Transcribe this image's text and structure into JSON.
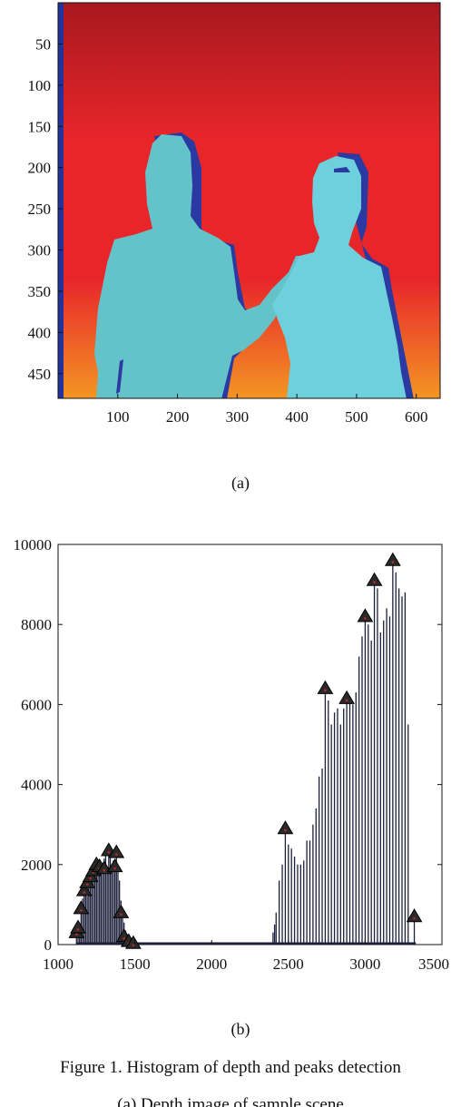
{
  "panel_a": {
    "label": "(a)",
    "image_width": 640,
    "image_height": 480,
    "yticks": [
      50,
      100,
      150,
      200,
      250,
      300,
      350,
      400,
      450
    ],
    "xticks": [
      100,
      200,
      300,
      400,
      500,
      600
    ],
    "colors": {
      "far_top": "#a8181f",
      "mid": "#e8262a",
      "near_bottom": "#f39524",
      "person_fill": "#63c3c9",
      "person_fill_light": "#6ed0dc",
      "shadow": "#2a3aa2",
      "left_border": "#24339c"
    }
  },
  "chart_data": {
    "type": "bar",
    "label": "(b)",
    "xlim": [
      1000,
      3500
    ],
    "ylim": [
      0,
      10000
    ],
    "xticks": [
      1000,
      1500,
      2000,
      2500,
      3000,
      3500
    ],
    "yticks": [
      0,
      2000,
      4000,
      6000,
      8000,
      10000
    ],
    "bars": [
      [
        1120,
        300
      ],
      [
        1130,
        420
      ],
      [
        1140,
        250
      ],
      [
        1150,
        900
      ],
      [
        1160,
        1150
      ],
      [
        1170,
        1350
      ],
      [
        1180,
        1500
      ],
      [
        1190,
        1200
      ],
      [
        1200,
        1650
      ],
      [
        1210,
        1450
      ],
      [
        1220,
        1800
      ],
      [
        1230,
        1600
      ],
      [
        1240,
        1950
      ],
      [
        1250,
        1850
      ],
      [
        1260,
        2050
      ],
      [
        1270,
        1750
      ],
      [
        1280,
        2000
      ],
      [
        1290,
        1900
      ],
      [
        1300,
        2150
      ],
      [
        1310,
        2250
      ],
      [
        1320,
        1800
      ],
      [
        1330,
        2350
      ],
      [
        1340,
        2200
      ],
      [
        1350,
        2000
      ],
      [
        1360,
        2100
      ],
      [
        1370,
        1850
      ],
      [
        1380,
        2300
      ],
      [
        1390,
        1950
      ],
      [
        1400,
        1600
      ],
      [
        1410,
        1100
      ],
      [
        1420,
        800
      ],
      [
        1430,
        550
      ],
      [
        1440,
        350
      ],
      [
        1450,
        250
      ],
      [
        1460,
        180
      ],
      [
        1470,
        150
      ],
      [
        1480,
        110
      ],
      [
        1490,
        80
      ],
      [
        1500,
        60
      ],
      [
        1510,
        40
      ],
      [
        2400,
        300
      ],
      [
        2410,
        500
      ],
      [
        2420,
        800
      ],
      [
        2440,
        1600
      ],
      [
        2460,
        2000
      ],
      [
        2480,
        2900
      ],
      [
        2500,
        2500
      ],
      [
        2520,
        2400
      ],
      [
        2540,
        2200
      ],
      [
        2560,
        2000
      ],
      [
        2580,
        2000
      ],
      [
        2600,
        2100
      ],
      [
        2620,
        2600
      ],
      [
        2640,
        2600
      ],
      [
        2660,
        3000
      ],
      [
        2680,
        3400
      ],
      [
        2700,
        4200
      ],
      [
        2720,
        4400
      ],
      [
        2740,
        6400
      ],
      [
        2760,
        6100
      ],
      [
        2780,
        5500
      ],
      [
        2800,
        5800
      ],
      [
        2820,
        5900
      ],
      [
        2840,
        5500
      ],
      [
        2860,
        5900
      ],
      [
        2880,
        6100
      ],
      [
        2900,
        6100
      ],
      [
        2920,
        6000
      ],
      [
        2940,
        6300
      ],
      [
        2960,
        7200
      ],
      [
        2980,
        7700
      ],
      [
        3000,
        8200
      ],
      [
        3020,
        8000
      ],
      [
        3040,
        7600
      ],
      [
        3060,
        9100
      ],
      [
        3080,
        8900
      ],
      [
        3100,
        7800
      ],
      [
        3120,
        8100
      ],
      [
        3140,
        8400
      ],
      [
        3160,
        8200
      ],
      [
        3180,
        9600
      ],
      [
        3200,
        9300
      ],
      [
        3220,
        8900
      ],
      [
        3240,
        8700
      ],
      [
        3260,
        8800
      ],
      [
        3280,
        5500
      ],
      [
        3300,
        0
      ],
      [
        3320,
        700
      ]
    ],
    "peaks": [
      [
        1120,
        300
      ],
      [
        1130,
        420
      ],
      [
        1150,
        900
      ],
      [
        1170,
        1350
      ],
      [
        1190,
        1550
      ],
      [
        1210,
        1700
      ],
      [
        1230,
        1850
      ],
      [
        1250,
        2000
      ],
      [
        1270,
        1950
      ],
      [
        1300,
        1900
      ],
      [
        1330,
        2350
      ],
      [
        1380,
        2300
      ],
      [
        1370,
        1950
      ],
      [
        1410,
        800
      ],
      [
        1430,
        200
      ],
      [
        1460,
        80
      ],
      [
        1490,
        30
      ],
      [
        2480,
        2900
      ],
      [
        2740,
        6400
      ],
      [
        2880,
        6150
      ],
      [
        3000,
        8200
      ],
      [
        3060,
        9100
      ],
      [
        3180,
        9600
      ],
      [
        3320,
        700
      ]
    ]
  },
  "figure_caption": {
    "line1": "Figure 1. Histogram of depth and peaks detection",
    "line2": "(a) Depth image of sample scene"
  }
}
